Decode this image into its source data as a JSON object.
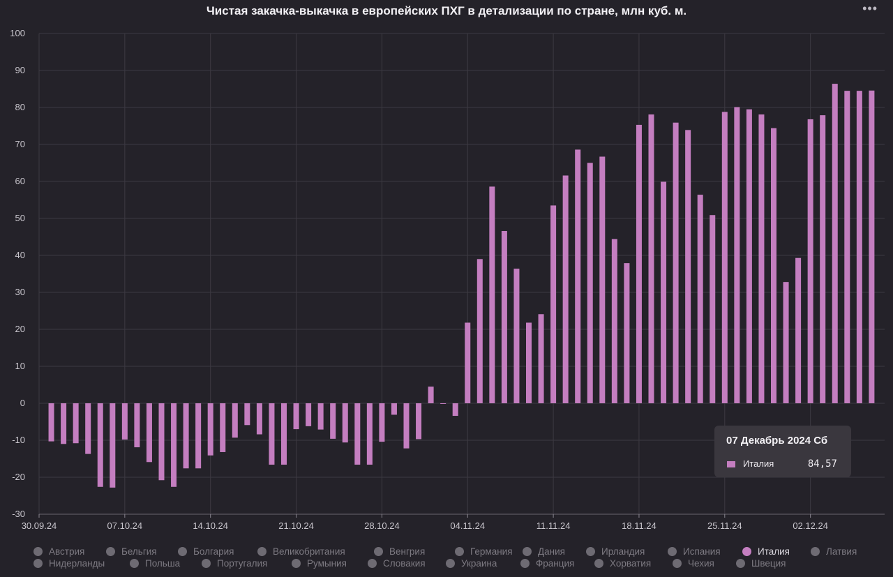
{
  "chart_data": {
    "type": "bar",
    "title": "Чистая закачка-выкачка в европейских ПХГ в детализации по стране, млн куб. м.",
    "ylim": [
      -30,
      100
    ],
    "y_ticks": [
      100,
      90,
      80,
      70,
      60,
      50,
      40,
      30,
      20,
      10,
      0,
      -10,
      -20,
      -30
    ],
    "x_tick_labels": [
      "30.09.24",
      "07.10.24",
      "14.10.24",
      "21.10.24",
      "28.10.24",
      "04.11.24",
      "11.11.24",
      "18.11.24",
      "25.11.24",
      "02.12.24"
    ],
    "x_start_date": "2024-09-30",
    "x_end_date": "2024-12-07",
    "grid": true,
    "bar_color": "#c47ec0",
    "series": [
      {
        "name": "Италия",
        "dates": [
          "2024-10-01",
          "2024-10-02",
          "2024-10-03",
          "2024-10-04",
          "2024-10-05",
          "2024-10-06",
          "2024-10-07",
          "2024-10-08",
          "2024-10-09",
          "2024-10-10",
          "2024-10-11",
          "2024-10-12",
          "2024-10-13",
          "2024-10-14",
          "2024-10-15",
          "2024-10-16",
          "2024-10-17",
          "2024-10-18",
          "2024-10-19",
          "2024-10-20",
          "2024-10-21",
          "2024-10-22",
          "2024-10-23",
          "2024-10-24",
          "2024-10-25",
          "2024-10-26",
          "2024-10-27",
          "2024-10-28",
          "2024-10-29",
          "2024-10-30",
          "2024-10-31",
          "2024-11-01",
          "2024-11-02",
          "2024-11-03",
          "2024-11-04",
          "2024-11-05",
          "2024-11-06",
          "2024-11-07",
          "2024-11-08",
          "2024-11-09",
          "2024-11-10",
          "2024-11-11",
          "2024-11-12",
          "2024-11-13",
          "2024-11-14",
          "2024-11-15",
          "2024-11-16",
          "2024-11-17",
          "2024-11-18",
          "2024-11-19",
          "2024-11-20",
          "2024-11-21",
          "2024-11-22",
          "2024-11-23",
          "2024-11-24",
          "2024-11-25",
          "2024-11-26",
          "2024-11-27",
          "2024-11-28",
          "2024-11-29",
          "2024-11-30",
          "2024-12-01",
          "2024-12-02",
          "2024-12-03",
          "2024-12-04",
          "2024-12-05",
          "2024-12-06",
          "2024-12-07"
        ],
        "values": [
          -10.3,
          -11,
          -10.8,
          -13.7,
          -22.6,
          -22.8,
          -9.8,
          -11.9,
          -15.9,
          -20.8,
          -22.6,
          -17.6,
          -17.6,
          -14.1,
          -13.2,
          -9.3,
          -5.9,
          -8.4,
          -16.6,
          -16.6,
          -7,
          -6.2,
          -7.1,
          -9.6,
          -10.6,
          -16.6,
          -16.6,
          -10.4,
          -3.1,
          -12.2,
          -9.7,
          4.5,
          0,
          -3.4,
          21.8,
          39,
          58.6,
          46.6,
          36.4,
          21.8,
          24.1,
          53.5,
          61.6,
          68.6,
          65,
          66.7,
          44.4,
          37.9,
          75.3,
          78.1,
          59.9,
          75.9,
          73.9,
          56.4,
          50.9,
          78.8,
          80.1,
          79.5,
          78.1,
          74.4,
          32.8,
          39.3,
          76.8,
          77.9,
          86.4,
          84.5,
          84.5,
          84.57
        ]
      }
    ]
  },
  "tooltip": {
    "date": "07 Декабрь 2024 Сб",
    "series": "Италия",
    "value": "84,57"
  },
  "legend": {
    "row1": [
      "Австрия",
      "Бельгия",
      "Болгария",
      "Великобритания",
      "Венгрия",
      "Германия",
      "Дания",
      "Ирландия",
      "Испания",
      "Италия",
      "Латвия"
    ],
    "row2": [
      "Нидерланды",
      "Польша",
      "Португалия",
      "Румыния",
      "Словакия",
      "Украина",
      "Франция",
      "Хорватия",
      "Чехия",
      "Швеция"
    ],
    "active": "Италия"
  },
  "menu_icon": "more-horizontal-icon"
}
